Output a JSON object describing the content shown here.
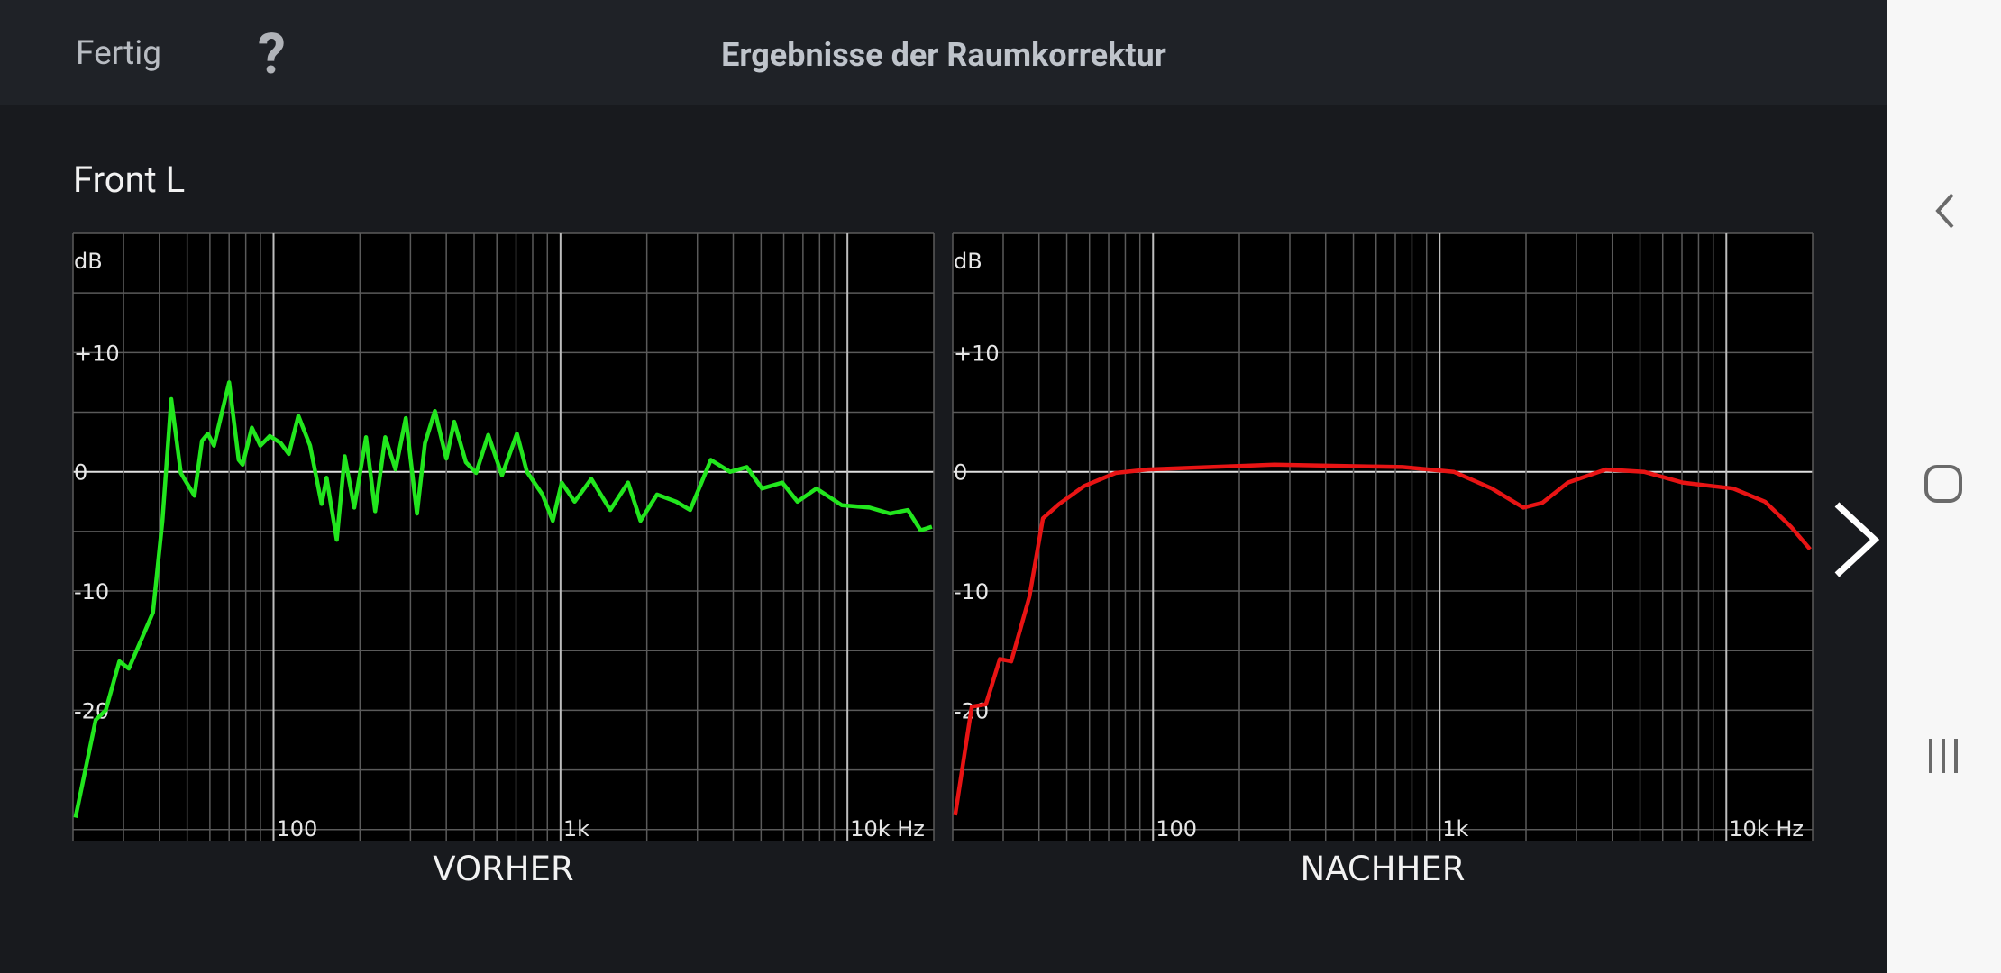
{
  "header": {
    "done": "Fertig",
    "help": "?",
    "title": "Ergebnisse der Raumkorrektur"
  },
  "channel": "Front L",
  "chart_data": [
    {
      "type": "line",
      "title": "VORHER",
      "ylabel": "dB",
      "color": "#22e61e",
      "xscale": "log",
      "xlim": [
        20,
        20000
      ],
      "ylim": [
        -31,
        20
      ],
      "xticks": [
        {
          "value": 100,
          "label": "100"
        },
        {
          "value": 1000,
          "label": "1k"
        },
        {
          "value": 10000,
          "label": "10k Hz"
        }
      ],
      "xgrid": [
        20,
        30,
        40,
        50,
        60,
        70,
        80,
        90,
        200,
        300,
        400,
        500,
        600,
        700,
        800,
        900,
        2000,
        3000,
        4000,
        5000,
        6000,
        7000,
        8000,
        9000,
        20000
      ],
      "yticks": [
        {
          "value": 10,
          "label": "+10"
        },
        0,
        -10,
        -20
      ],
      "ygrid": [
        -30,
        -25,
        -20,
        -15,
        -10,
        -5,
        0,
        5,
        10,
        15,
        20
      ],
      "x": [
        20.4,
        24,
        26,
        29,
        31.3,
        38,
        41,
        44,
        47.5,
        53,
        56.3,
        59,
        62,
        70,
        75.6,
        78,
        84,
        90,
        97,
        106,
        113,
        122,
        134,
        147,
        153,
        166,
        177,
        191,
        210,
        226,
        245,
        266,
        289,
        316,
        337,
        365,
        400,
        426,
        468,
        508,
        560,
        625,
        705,
        764,
        865,
        940,
        1010,
        1120,
        1280,
        1490,
        1720,
        1900,
        2170,
        2530,
        2830,
        3340,
        3900,
        4460,
        5040,
        5930,
        6700,
        7800,
        9560,
        11950,
        14070,
        16250,
        18000,
        19700
      ],
      "values": [
        -29,
        -20.8,
        -20,
        -15.9,
        -16.5,
        -11.8,
        -4.1,
        6.1,
        -0.1,
        -2,
        2.6,
        3.2,
        2.2,
        7.5,
        1,
        0.6,
        3.7,
        2.2,
        3,
        2.4,
        1.5,
        4.7,
        2.2,
        -2.7,
        -0.5,
        -5.7,
        1.3,
        -3,
        2.9,
        -3.3,
        2.9,
        0.2,
        4.5,
        -3.5,
        2.4,
        5.1,
        1.1,
        4.2,
        0.8,
        -0.1,
        3.1,
        -0.3,
        3.2,
        0,
        -1.9,
        -4.1,
        -0.9,
        -2.5,
        -0.6,
        -3.2,
        -0.9,
        -4.1,
        -1.9,
        -2.5,
        -3.2,
        1,
        0,
        0.4,
        -1.4,
        -0.9,
        -2.5,
        -1.4,
        -2.8,
        -3,
        -3.5,
        -3.2,
        -4.9,
        -4.6
      ]
    },
    {
      "type": "line",
      "title": "NACHHER",
      "ylabel": "dB",
      "color": "#e81414",
      "xscale": "log",
      "xlim": [
        20,
        20000
      ],
      "ylim": [
        -31,
        20
      ],
      "xticks": [
        {
          "value": 100,
          "label": "100"
        },
        {
          "value": 1000,
          "label": "1k"
        },
        {
          "value": 10000,
          "label": "10k Hz"
        }
      ],
      "xgrid": [
        20,
        30,
        40,
        50,
        60,
        70,
        80,
        90,
        200,
        300,
        400,
        500,
        600,
        700,
        800,
        900,
        2000,
        3000,
        4000,
        5000,
        6000,
        7000,
        8000,
        9000,
        20000
      ],
      "yticks": [
        {
          "value": 10,
          "label": "+10"
        },
        0,
        -10,
        -20
      ],
      "ygrid": [
        -30,
        -25,
        -20,
        -15,
        -10,
        -5,
        0,
        5,
        10,
        15,
        20
      ],
      "x": [
        20.4,
        23.3,
        26.1,
        29.2,
        32,
        37,
        41.3,
        47,
        57.4,
        74,
        95.9,
        159,
        265,
        444,
        742,
        1120,
        1520,
        1960,
        2280,
        2800,
        3800,
        5160,
        7030,
        10560,
        13640,
        16800,
        19600
      ],
      "values": [
        -28.8,
        -19.7,
        -19.5,
        -15.7,
        -15.9,
        -10.5,
        -3.9,
        -2.7,
        -1.2,
        -0.1,
        0.2,
        0.4,
        0.6,
        0.5,
        0.4,
        0,
        -1.4,
        -3,
        -2.6,
        -0.9,
        0.2,
        0,
        -0.9,
        -1.4,
        -2.5,
        -4.6,
        -6.5
      ]
    }
  ]
}
